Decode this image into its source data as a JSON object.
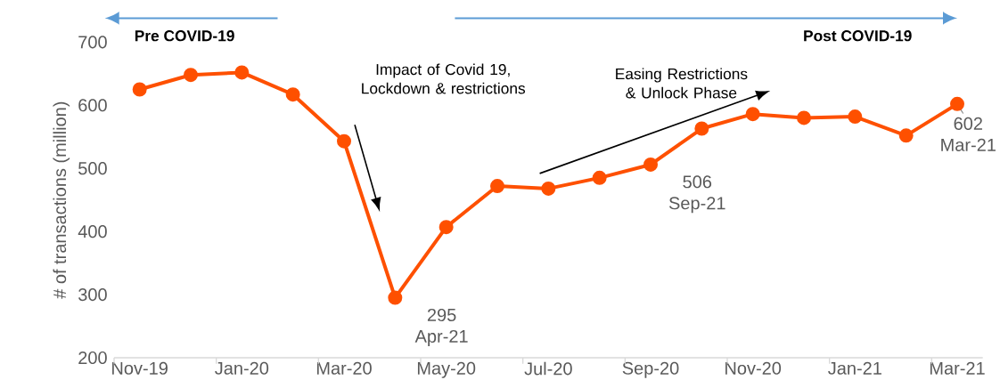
{
  "chart_data": {
    "type": "line",
    "ylabel": "# of transactions (million)",
    "categories": [
      "Nov-19",
      null,
      "Jan-20",
      null,
      "Mar-20",
      null,
      "May-20",
      null,
      "Jul-20",
      null,
      "Sep-20",
      null,
      "Nov-20",
      null,
      "Jan-21",
      null,
      "Mar-21"
    ],
    "series": [
      {
        "color": "#fe5000",
        "values": [
          625,
          648,
          652,
          617,
          543,
          295,
          407,
          472,
          468,
          485,
          506,
          563,
          586,
          580,
          582,
          552,
          602
        ],
        "value_labels": [
          null,
          null,
          null,
          null,
          null,
          "295 Apr-21",
          null,
          null,
          null,
          null,
          "506 Sep-21",
          null,
          null,
          null,
          null,
          null,
          "602 Mar-21"
        ]
      }
    ],
    "ylim": [
      200,
      700
    ],
    "yticks": [
      200,
      300,
      400,
      500,
      600,
      700
    ],
    "marker": "circle",
    "line_style": "solid",
    "annotations": [
      "Impact of Covid 19, Lockdown & restrictions",
      "Easing Restrictions & Unlock Phase",
      "Pre COVID-19",
      "Post COVID-19"
    ]
  }
}
